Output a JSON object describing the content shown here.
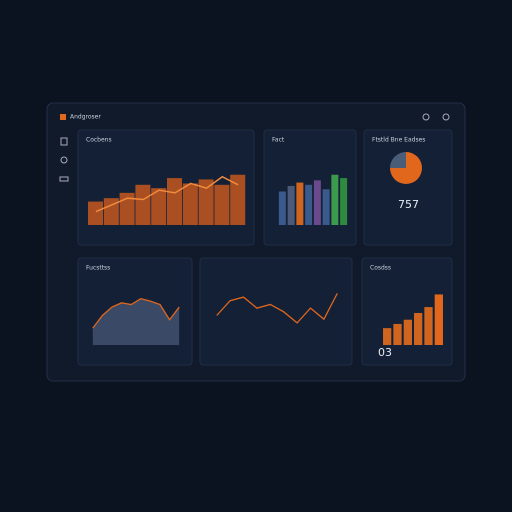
{
  "header": {
    "title": "Andgroser"
  },
  "panels": [
    {
      "title": "Cocbens",
      "type": "barline",
      "ylim": [
        0,
        100
      ],
      "values": [
        35,
        40,
        48,
        60,
        55,
        70,
        62,
        68,
        60,
        75
      ],
      "line": [
        20,
        30,
        40,
        38,
        52,
        48,
        62,
        55,
        72,
        60
      ],
      "color": "#c4581f",
      "line_color": "#f08a3c"
    },
    {
      "title": "Fact",
      "type": "bar",
      "ylim": [
        0,
        60
      ],
      "values": [
        30,
        35,
        38,
        36,
        40,
        32,
        45,
        42
      ],
      "colors": [
        "#3a5a8c",
        "#4a5a78",
        "#d0651f",
        "#3a5a8c",
        "#6a4a8c",
        "#3a5a8c",
        "#3c9a4c",
        "#2f8a40"
      ]
    },
    {
      "title": "Ftstld Bne Eadses",
      "type": "pie",
      "values": [
        75,
        25
      ],
      "colors": [
        "#e0671c",
        "#4a5d78"
      ],
      "kpi": "757"
    },
    {
      "title": "Fucsttss",
      "type": "area",
      "ylim": [
        0,
        70
      ],
      "values": [
        20,
        35,
        45,
        50,
        48,
        55,
        52,
        48,
        30,
        45
      ],
      "color": "#3e4e6a",
      "line_color": "#e0671c"
    },
    {
      "title": "",
      "type": "line",
      "ylim": [
        0,
        80
      ],
      "values": [
        40,
        60,
        65,
        50,
        55,
        45,
        30,
        50,
        35,
        70
      ],
      "line_color": "#e0671c"
    },
    {
      "title": "Cosdss",
      "type": "bar",
      "ylim": [
        0,
        70
      ],
      "values": [
        20,
        25,
        30,
        38,
        45,
        60
      ],
      "colors": [
        "#d0651f",
        "#d0651f",
        "#d0651f",
        "#d0651f",
        "#d0651f",
        "#e0671c"
      ],
      "kpi": "03"
    }
  ]
}
